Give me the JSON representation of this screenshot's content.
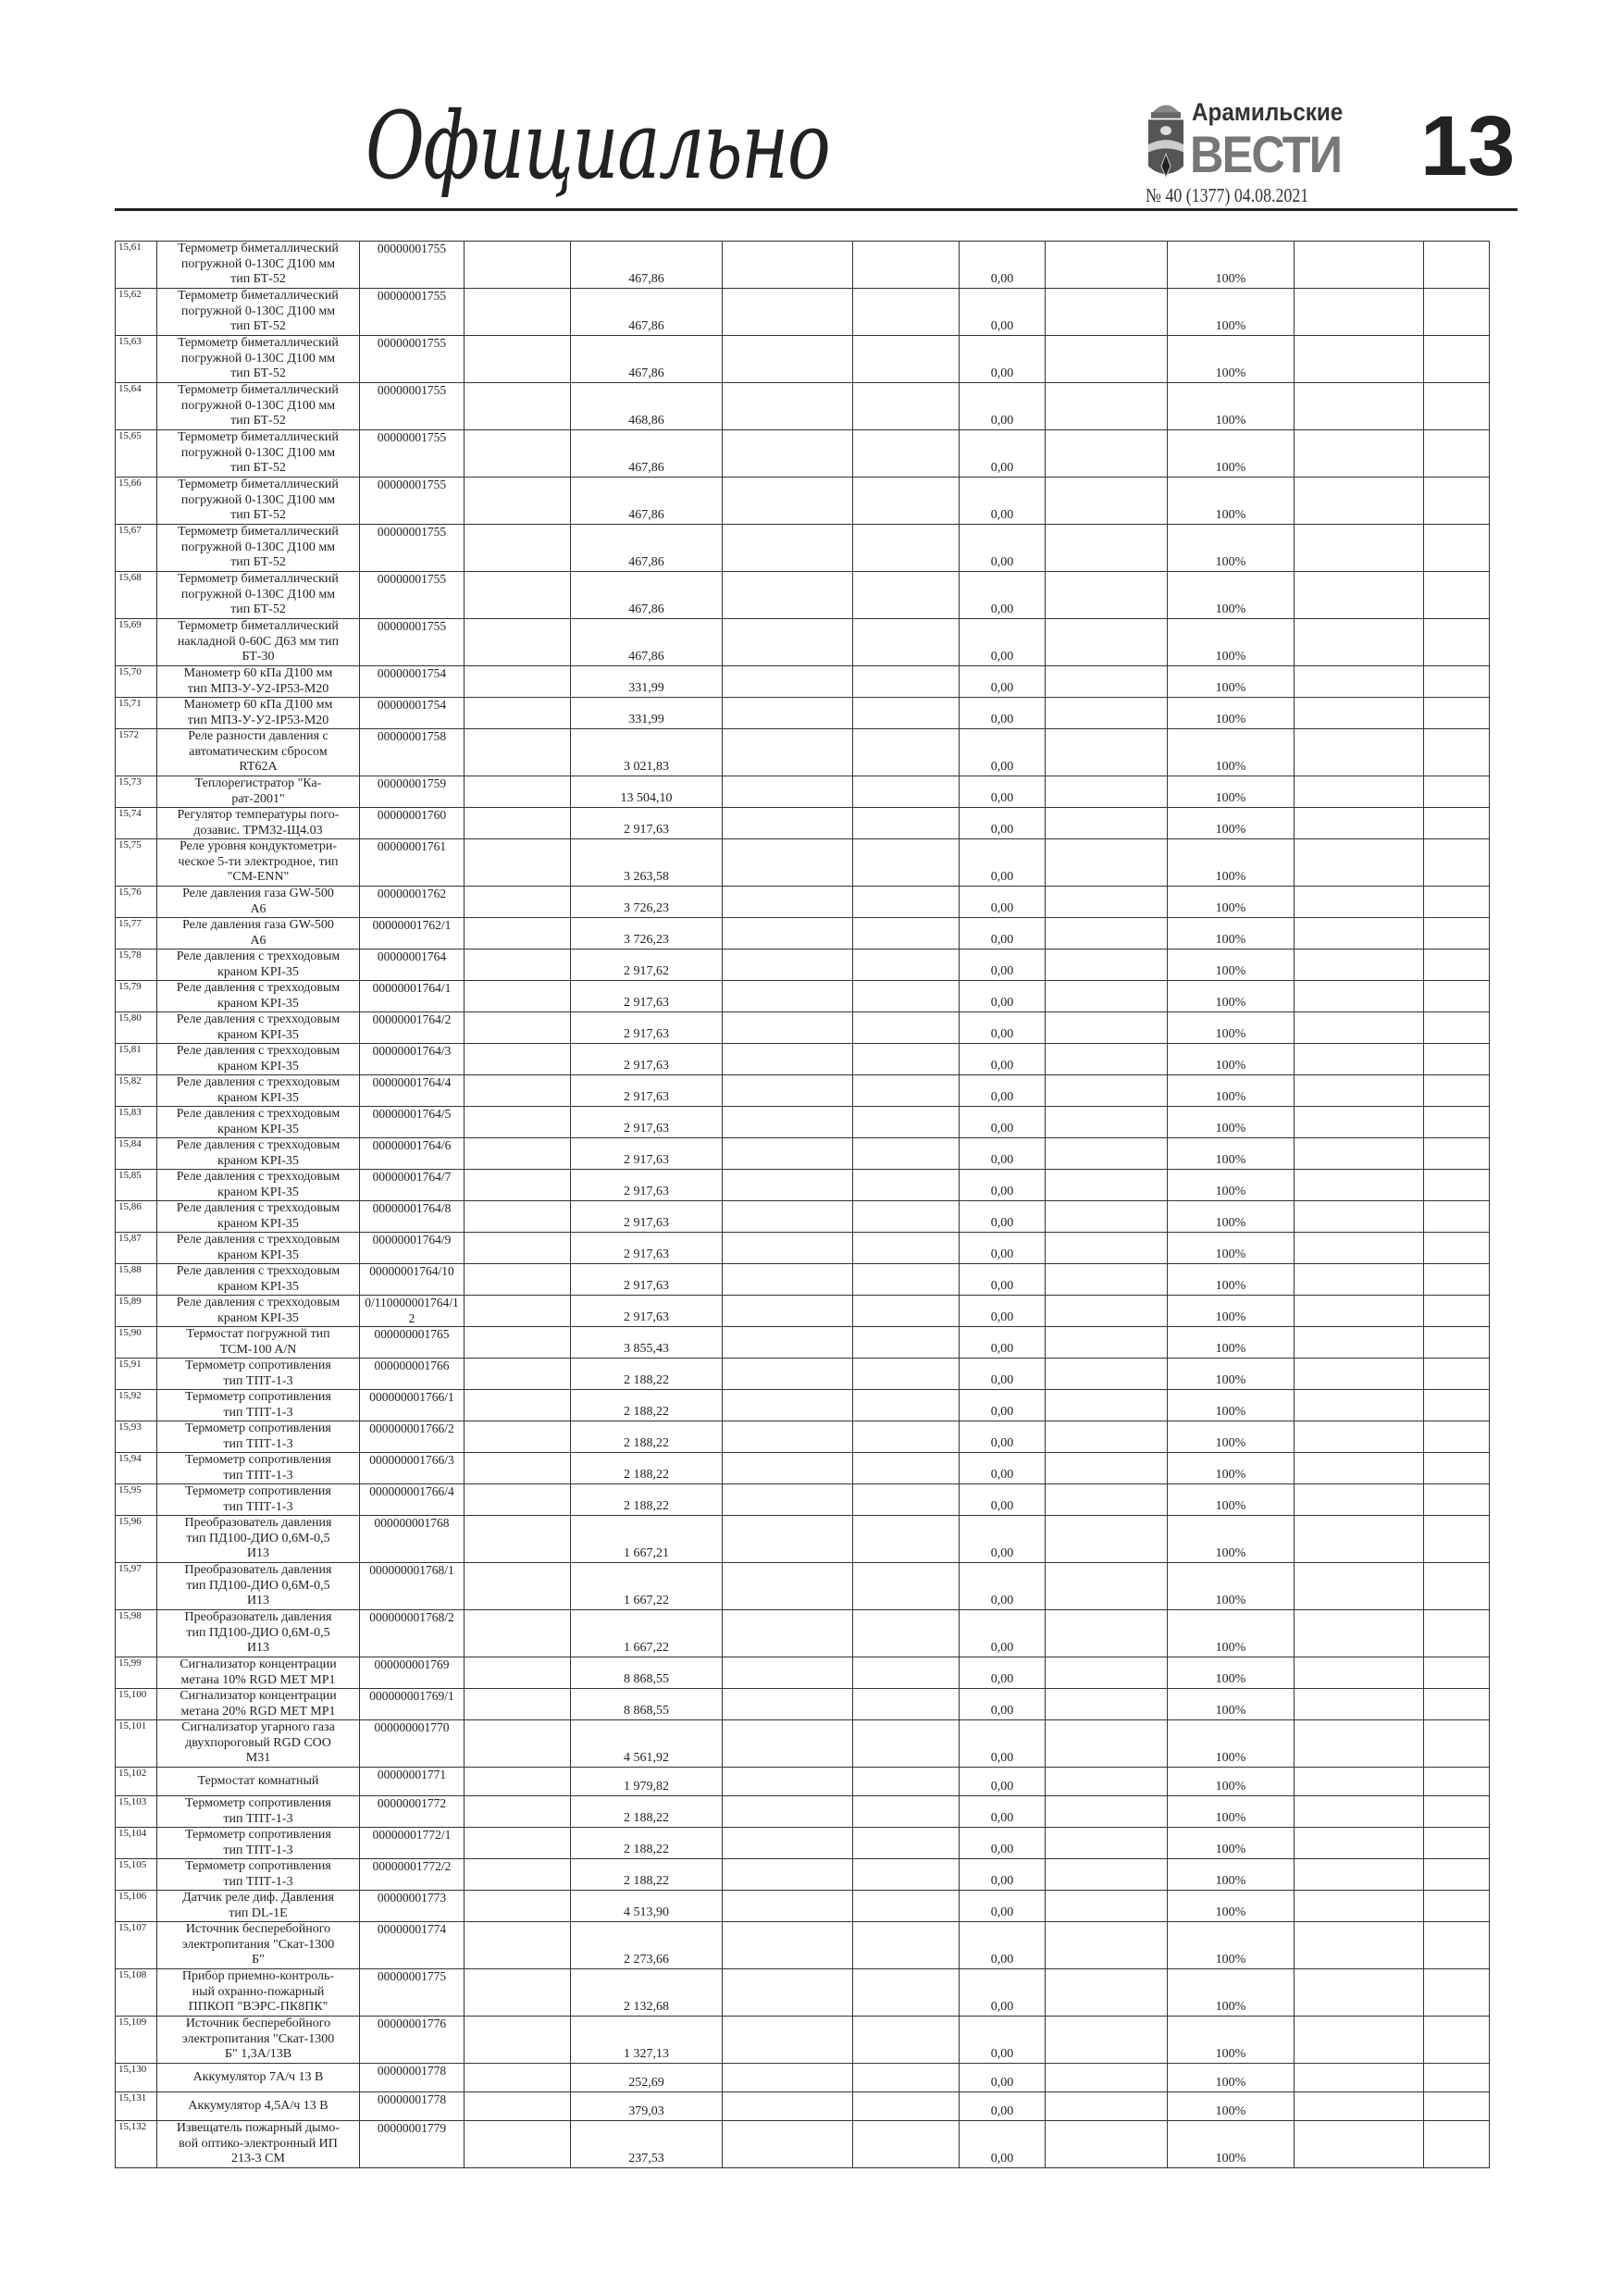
{
  "header": {
    "section_title": "Официально",
    "logo_small": "Арамильские",
    "logo_big": "ВЕСТИ",
    "issue": "№ 40 (1377) 04.08.2021",
    "page_number": "13"
  },
  "rows": [
    {
      "id": "15,61",
      "desc": "Термометр биметаллический\nпогружной 0-130С Д100 мм\nтип БТ-52",
      "code": "00000001755",
      "value": "467,86",
      "zero": "0,00",
      "pct": "100%"
    },
    {
      "id": "15,62",
      "desc": "Термометр биметаллический\nпогружной 0-130С Д100 мм\nтип БТ-52",
      "code": "00000001755",
      "value": "467,86",
      "zero": "0,00",
      "pct": "100%"
    },
    {
      "id": "15,63",
      "desc": "Термометр биметаллический\nпогружной 0-130С Д100 мм\nтип БТ-52",
      "code": "00000001755",
      "value": "467,86",
      "zero": "0,00",
      "pct": "100%"
    },
    {
      "id": "15,64",
      "desc": "Термометр биметаллический\nпогружной 0-130С Д100 мм\nтип БТ-52",
      "code": "00000001755",
      "value": "468,86",
      "zero": "0,00",
      "pct": "100%"
    },
    {
      "id": "15,65",
      "desc": "Термометр биметаллический\nпогружной 0-130С Д100 мм\nтип БТ-52",
      "code": "00000001755",
      "value": "467,86",
      "zero": "0,00",
      "pct": "100%"
    },
    {
      "id": "15,66",
      "desc": "Термометр биметаллический\nпогружной 0-130С Д100 мм\nтип БТ-52",
      "code": "00000001755",
      "value": "467,86",
      "zero": "0,00",
      "pct": "100%"
    },
    {
      "id": "15,67",
      "desc": "Термометр биметаллический\nпогружной 0-130С Д100 мм\nтип БТ-52",
      "code": "00000001755",
      "value": "467,86",
      "zero": "0,00",
      "pct": "100%"
    },
    {
      "id": "15,68",
      "desc": "Термометр биметаллический\nпогружной 0-130С Д100 мм\nтип БТ-52",
      "code": "00000001755",
      "value": "467,86",
      "zero": "0,00",
      "pct": "100%"
    },
    {
      "id": "15,69",
      "desc": "Термометр биметаллический\nнакладной 0-60С Д63 мм тип\nБТ-30",
      "code": "00000001755",
      "value": "467,86",
      "zero": "0,00",
      "pct": "100%"
    },
    {
      "id": "15,70",
      "desc": "Манометр 60 кПа Д100 мм\nтип МПЗ-У-У2-IP53-М20",
      "code": "00000001754",
      "value": "331,99",
      "zero": "0,00",
      "pct": "100%"
    },
    {
      "id": "15,71",
      "desc": "Манометр 60 кПа Д100 мм\nтип МПЗ-У-У2-IP53-М20",
      "code": "00000001754",
      "value": "331,99",
      "zero": "0,00",
      "pct": "100%"
    },
    {
      "id": "1572",
      "desc": "Реле разности давления с\nавтоматическим сбросом\nRT62A",
      "code": "00000001758",
      "value": "3 021,83",
      "zero": "0,00",
      "pct": "100%"
    },
    {
      "id": "15,73",
      "desc": "Теплорегистратор \"Ка-\nрат-2001\"",
      "code": "00000001759",
      "value": "13 504,10",
      "zero": "0,00",
      "pct": "100%"
    },
    {
      "id": "15,74",
      "desc": "Регулятор температуры пого-\nдозавис. ТРМ32-Щ4.03",
      "code": "00000001760",
      "value": "2 917,63",
      "zero": "0,00",
      "pct": "100%"
    },
    {
      "id": "15,75",
      "desc": "Реле уровня кондуктометри-\nческое 5-ти электродное, тип\n\"CM-ENN\"",
      "code": "00000001761",
      "value": "3 263,58",
      "zero": "0,00",
      "pct": "100%"
    },
    {
      "id": "15,76",
      "desc": "Реле давления газа GW-500\nA6",
      "code": "00000001762",
      "value": "3 726,23",
      "zero": "0,00",
      "pct": "100%"
    },
    {
      "id": "15,77",
      "desc": "Реле давления газа GW-500\nA6",
      "code": "00000001762/1",
      "value": "3 726,23",
      "zero": "0,00",
      "pct": "100%"
    },
    {
      "id": "15,78",
      "desc": "Реле давления с трехходовым\nкраном KPI-35",
      "code": "00000001764",
      "value": "2 917,62",
      "zero": "0,00",
      "pct": "100%"
    },
    {
      "id": "15,79",
      "desc": "Реле давления с трехходовым\nкраном KPI-35",
      "code": "00000001764/1",
      "value": "2 917,63",
      "zero": "0,00",
      "pct": "100%"
    },
    {
      "id": "15,80",
      "desc": "Реле давления с трехходовым\nкраном KPI-35",
      "code": "00000001764/2",
      "value": "2 917,63",
      "zero": "0,00",
      "pct": "100%"
    },
    {
      "id": "15,81",
      "desc": "Реле давления с трехходовым\nкраном KPI-35",
      "code": "00000001764/3",
      "value": "2 917,63",
      "zero": "0,00",
      "pct": "100%"
    },
    {
      "id": "15,82",
      "desc": "Реле давления с трехходовым\nкраном KPI-35",
      "code": "00000001764/4",
      "value": "2 917,63",
      "zero": "0,00",
      "pct": "100%"
    },
    {
      "id": "15,83",
      "desc": "Реле давления с трехходовым\nкраном KPI-35",
      "code": "00000001764/5",
      "value": "2 917,63",
      "zero": "0,00",
      "pct": "100%"
    },
    {
      "id": "15,84",
      "desc": "Реле давления с трехходовым\nкраном KPI-35",
      "code": "00000001764/6",
      "value": "2 917,63",
      "zero": "0,00",
      "pct": "100%"
    },
    {
      "id": "15,85",
      "desc": "Реле давления с трехходовым\nкраном KPI-35",
      "code": "00000001764/7",
      "value": "2 917,63",
      "zero": "0,00",
      "pct": "100%"
    },
    {
      "id": "15,86",
      "desc": "Реле давления с трехходовым\nкраном KPI-35",
      "code": "00000001764/8",
      "value": "2 917,63",
      "zero": "0,00",
      "pct": "100%"
    },
    {
      "id": "15,87",
      "desc": "Реле давления с трехходовым\nкраном KPI-35",
      "code": "00000001764/9",
      "value": "2 917,63",
      "zero": "0,00",
      "pct": "100%"
    },
    {
      "id": "15,88",
      "desc": "Реле давления с трехходовым\nкраном KPI-35",
      "code": "00000001764/10",
      "value": "2 917,63",
      "zero": "0,00",
      "pct": "100%"
    },
    {
      "id": "15,89",
      "desc": "Реле давления с трехходовым\nкраном KPI-35",
      "code": "0/110000001764/12",
      "value": "2 917,63",
      "zero": "0,00",
      "pct": "100%"
    },
    {
      "id": "15,90",
      "desc": "Термостат погружной тип\nTCM-100 A/N",
      "code": "000000001765",
      "value": "3 855,43",
      "zero": "0,00",
      "pct": "100%"
    },
    {
      "id": "15,91",
      "desc": "Термометр сопротивления\nтип ТПТ-1-3",
      "code": "000000001766",
      "value": "2 188,22",
      "zero": "0,00",
      "pct": "100%"
    },
    {
      "id": "15,92",
      "desc": "Термометр сопротивления\nтип ТПТ-1-3",
      "code": "000000001766/1",
      "value": "2 188,22",
      "zero": "0,00",
      "pct": "100%"
    },
    {
      "id": "15,93",
      "desc": "Термометр сопротивления\nтип ТПТ-1-3",
      "code": "000000001766/2",
      "value": "2 188,22",
      "zero": "0,00",
      "pct": "100%"
    },
    {
      "id": "15,94",
      "desc": "Термометр сопротивления\nтип ТПТ-1-3",
      "code": "000000001766/3",
      "value": "2 188,22",
      "zero": "0,00",
      "pct": "100%"
    },
    {
      "id": "15,95",
      "desc": "Термометр сопротивления\nтип ТПТ-1-3",
      "code": "000000001766/4",
      "value": "2 188,22",
      "zero": "0,00",
      "pct": "100%"
    },
    {
      "id": "15,96",
      "desc": "Преобразователь давления\nтип ПД100-ДИО 0,6М-0,5\nИ13",
      "code": "000000001768",
      "value": "1 667,21",
      "zero": "0,00",
      "pct": "100%"
    },
    {
      "id": "15,97",
      "desc": "Преобразователь давления\nтип ПД100-ДИО 0,6М-0,5\nИ13",
      "code": "000000001768/1",
      "value": "1 667,22",
      "zero": "0,00",
      "pct": "100%"
    },
    {
      "id": "15,98",
      "desc": "Преобразователь давления\nтип ПД100-ДИО 0,6М-0,5\nИ13",
      "code": "000000001768/2",
      "value": "1 667,22",
      "zero": "0,00",
      "pct": "100%"
    },
    {
      "id": "15,99",
      "desc": "Сигнализатор концентрации\nметана 10% RGD MET MP1",
      "code": "000000001769",
      "value": "8 868,55",
      "zero": "0,00",
      "pct": "100%"
    },
    {
      "id": "15,100",
      "desc": "Сигнализатор концентрации\nметана 20% RGD MET MP1",
      "code": "000000001769/1",
      "value": "8 868,55",
      "zero": "0,00",
      "pct": "100%"
    },
    {
      "id": "15,101",
      "desc": "Сигнализатор угарного газа\nдвухпороговый RGD COO\nM31",
      "code": "000000001770",
      "value": "4 561,92",
      "zero": "0,00",
      "pct": "100%"
    },
    {
      "id": "15,102",
      "desc": "Термостат комнатный",
      "code": "00000001771",
      "value": "1 979,82",
      "zero": "0,00",
      "pct": "100%"
    },
    {
      "id": "15,103",
      "desc": "Термометр сопротивления\nтип ТПТ-1-3",
      "code": "00000001772",
      "value": "2 188,22",
      "zero": "0,00",
      "pct": "100%"
    },
    {
      "id": "15,104",
      "desc": "Термометр сопротивления\nтип ТПТ-1-3",
      "code": "00000001772/1",
      "value": "2 188,22",
      "zero": "0,00",
      "pct": "100%"
    },
    {
      "id": "15,105",
      "desc": "Термометр сопротивления\nтип ТПТ-1-3",
      "code": "00000001772/2",
      "value": "2 188,22",
      "zero": "0,00",
      "pct": "100%"
    },
    {
      "id": "15,106",
      "desc": "Датчик реле диф. Давления\nтип DL-1E",
      "code": "00000001773",
      "value": "4 513,90",
      "zero": "0,00",
      "pct": "100%"
    },
    {
      "id": "15,107",
      "desc": "Источник бесперебойного\nэлектропитания \"Скат-1300\nБ\"",
      "code": "00000001774",
      "value": "2 273,66",
      "zero": "0,00",
      "pct": "100%"
    },
    {
      "id": "15,108",
      "desc": "Прибор приемно-контроль-\nный охранно-пожарный\nППКОП \"ВЭРС-ПК8ПК\"",
      "code": "00000001775",
      "value": "2 132,68",
      "zero": "0,00",
      "pct": "100%"
    },
    {
      "id": "15,109",
      "desc": "Источник бесперебойного\nэлектропитания \"Скат-1300\nБ\" 1,3А/13В",
      "code": "00000001776",
      "value": "1 327,13",
      "zero": "0,00",
      "pct": "100%"
    },
    {
      "id": "15,130",
      "desc": "Аккумулятор 7А/ч 13 В",
      "code": "00000001778",
      "value": "252,69",
      "zero": "0,00",
      "pct": "100%"
    },
    {
      "id": "15,131",
      "desc": "Аккумулятор 4,5А/ч 13 В",
      "code": "00000001778",
      "value": "379,03",
      "zero": "0,00",
      "pct": "100%"
    },
    {
      "id": "15,132",
      "desc": "Извещатель пожарный дымо-\nвой оптико-электронный ИП\n213-3 СМ",
      "code": "00000001779",
      "value": "237,53",
      "zero": "0,00",
      "pct": "100%"
    }
  ]
}
